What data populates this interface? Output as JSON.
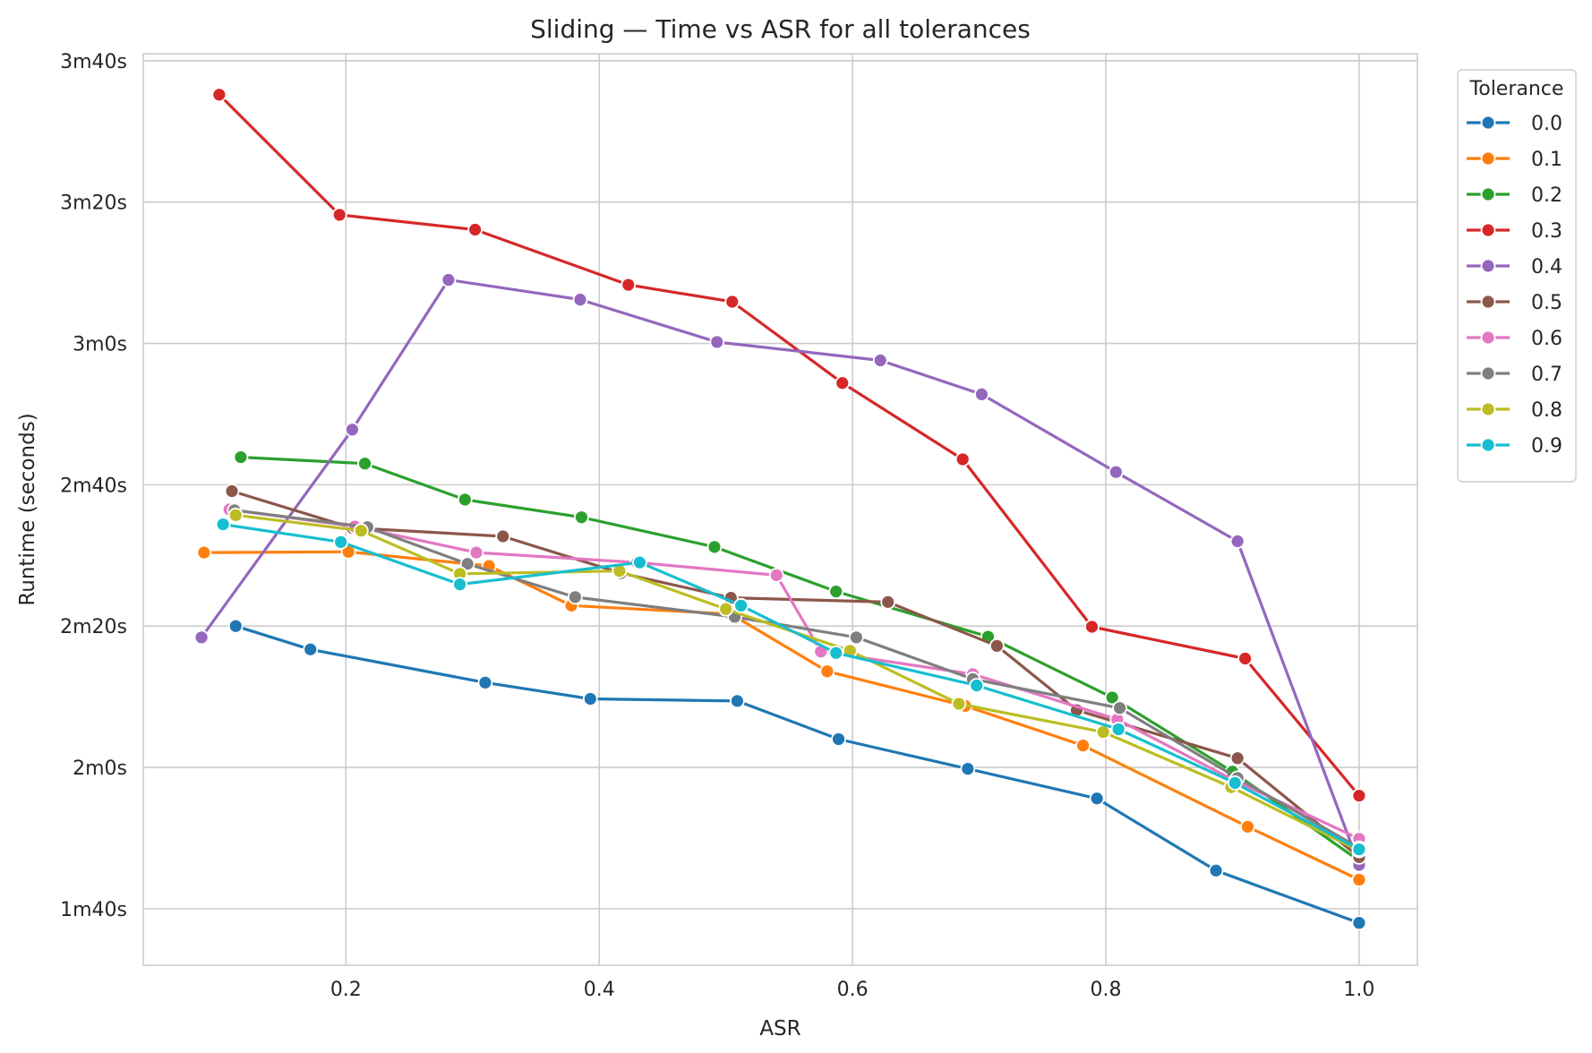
{
  "chart_data": {
    "type": "line",
    "title": "Sliding — Time vs ASR for all tolerances",
    "xlabel": "ASR",
    "ylabel": "Runtime (seconds)",
    "xlim": [
      0.04,
      1.046
    ],
    "ylim": [
      92,
      221
    ],
    "x_ticks": [
      0.2,
      0.4,
      0.6,
      0.8,
      1.0
    ],
    "x_tick_labels": [
      "0.2",
      "0.4",
      "0.6",
      "0.8",
      "1.0"
    ],
    "y_ticks": [
      100,
      120,
      140,
      160,
      180,
      200,
      220
    ],
    "y_tick_labels": [
      "1m40s",
      "2m0s",
      "2m20s",
      "2m40s",
      "3m0s",
      "3m20s",
      "3m40s"
    ],
    "grid": true,
    "legend": {
      "title": "Tolerance",
      "placement": "outside-right-top"
    },
    "series": [
      {
        "name": "0.0",
        "color": "#1f77b4",
        "x": [
          0.113,
          0.172,
          0.31,
          0.393,
          0.509,
          0.589,
          0.691,
          0.793,
          0.887,
          1.0
        ],
        "y": [
          140.0,
          136.7,
          132.0,
          129.7,
          129.4,
          124.0,
          119.8,
          115.6,
          105.4,
          98.0
        ]
      },
      {
        "name": "0.1",
        "color": "#ff7f0e",
        "x": [
          0.088,
          0.202,
          0.313,
          0.378,
          0.504,
          0.58,
          0.689,
          0.782,
          0.912,
          1.0
        ],
        "y": [
          150.4,
          150.5,
          148.5,
          142.9,
          141.7,
          133.6,
          128.7,
          123.1,
          111.6,
          104.1
        ]
      },
      {
        "name": "0.2",
        "color": "#2ca02c",
        "x": [
          0.117,
          0.215,
          0.294,
          0.386,
          0.491,
          0.587,
          0.707,
          0.805,
          0.9,
          1.0
        ],
        "y": [
          163.9,
          163.0,
          157.9,
          155.4,
          151.2,
          144.9,
          138.5,
          129.9,
          119.4,
          106.8
        ]
      },
      {
        "name": "0.3",
        "color": "#d62728",
        "x": [
          0.1,
          0.195,
          0.302,
          0.423,
          0.505,
          0.592,
          0.687,
          0.789,
          0.91,
          1.0
        ],
        "y": [
          215.2,
          198.2,
          196.1,
          188.3,
          185.9,
          174.4,
          163.6,
          139.9,
          135.4,
          116.0
        ]
      },
      {
        "name": "0.4",
        "color": "#9467bd",
        "x": [
          0.086,
          0.205,
          0.281,
          0.385,
          0.493,
          0.622,
          0.702,
          0.808,
          0.904,
          1.0
        ],
        "y": [
          138.4,
          167.8,
          189.0,
          186.2,
          180.2,
          177.6,
          172.8,
          161.8,
          152.0,
          106.2
        ]
      },
      {
        "name": "0.5",
        "color": "#8c564b",
        "x": [
          0.11,
          0.205,
          0.324,
          0.417,
          0.504,
          0.628,
          0.714,
          0.777,
          0.904,
          1.0
        ],
        "y": [
          159.1,
          153.9,
          152.7,
          147.5,
          144.0,
          143.4,
          137.2,
          128.1,
          121.3,
          107.3
        ]
      },
      {
        "name": "0.6",
        "color": "#e377c2",
        "x": [
          0.108,
          0.207,
          0.303,
          0.43,
          0.54,
          0.575,
          0.695,
          0.809,
          0.902,
          1.0
        ],
        "y": [
          156.5,
          154.1,
          150.4,
          149.0,
          147.2,
          136.4,
          133.2,
          126.8,
          118.1,
          109.9
        ]
      },
      {
        "name": "0.7",
        "color": "#7f7f7f",
        "x": [
          0.112,
          0.217,
          0.296,
          0.381,
          0.507,
          0.603,
          0.695,
          0.811,
          0.904,
          1.0
        ],
        "y": [
          156.4,
          154.0,
          148.8,
          144.1,
          141.3,
          138.4,
          132.5,
          128.4,
          118.5,
          108.6
        ]
      },
      {
        "name": "0.8",
        "color": "#bcbd22",
        "x": [
          0.113,
          0.212,
          0.29,
          0.416,
          0.5,
          0.598,
          0.684,
          0.798,
          0.899,
          1.0
        ],
        "y": [
          155.7,
          153.5,
          147.4,
          147.8,
          142.4,
          136.5,
          129.0,
          125.0,
          117.2,
          108.2
        ]
      },
      {
        "name": "0.9",
        "color": "#17becf",
        "x": [
          0.103,
          0.196,
          0.29,
          0.432,
          0.512,
          0.587,
          0.698,
          0.81,
          0.902,
          1.0
        ],
        "y": [
          154.4,
          151.9,
          145.9,
          149.0,
          142.9,
          136.2,
          131.6,
          125.4,
          117.8,
          108.4
        ]
      }
    ]
  }
}
